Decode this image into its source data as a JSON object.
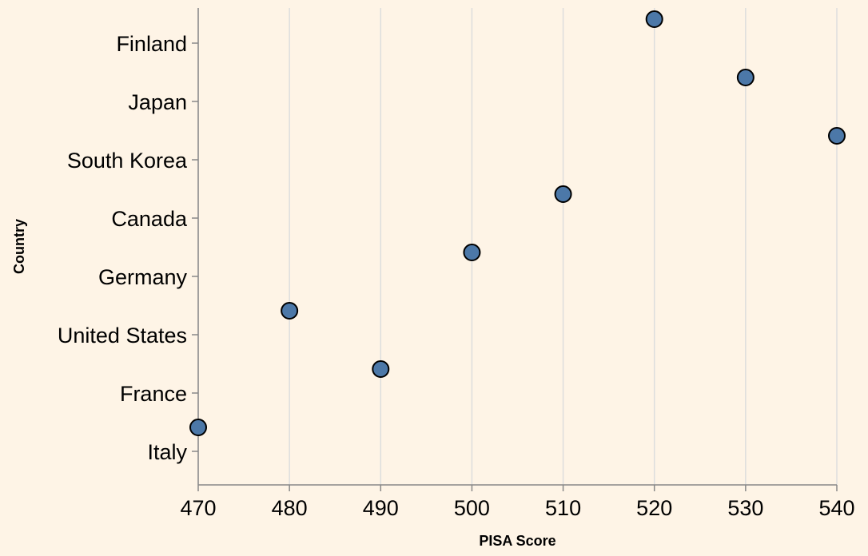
{
  "chart_data": {
    "type": "scatter",
    "xlabel": "PISA Score",
    "ylabel": "Country",
    "xlim": [
      470,
      540
    ],
    "x_ticks": [
      470,
      480,
      490,
      500,
      510,
      520,
      530,
      540
    ],
    "categories": [
      "Finland",
      "Japan",
      "South Korea",
      "Canada",
      "Germany",
      "United States",
      "France",
      "Italy"
    ],
    "values": [
      520,
      530,
      540,
      510,
      500,
      480,
      490,
      470
    ],
    "grid": "vertical",
    "colors": {
      "point": "#4c78a8",
      "background": "#fef4e6"
    }
  }
}
